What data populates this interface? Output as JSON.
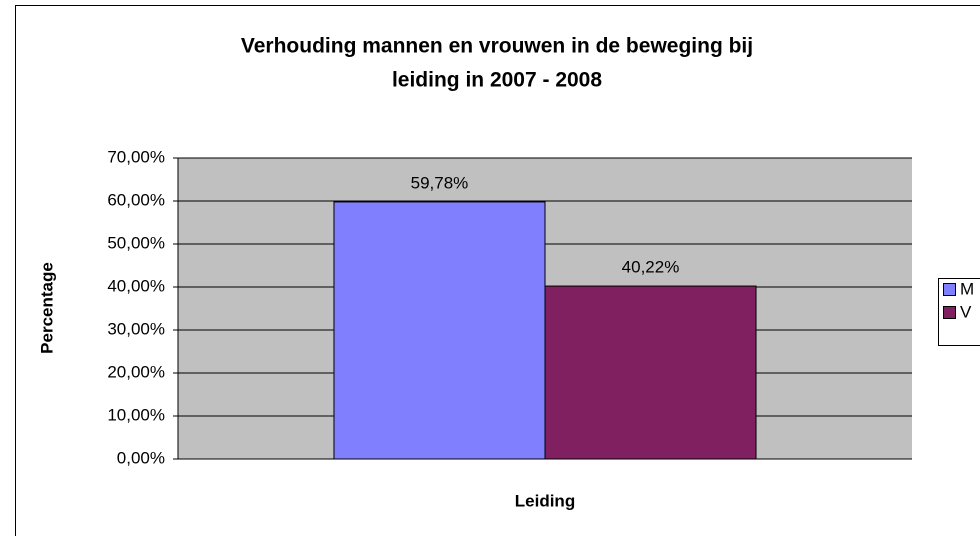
{
  "chart_data": {
    "type": "bar",
    "title": [
      "Verhouding mannen en vrouwen in de beweging bij",
      "leiding in 2007 - 2008"
    ],
    "x_label": "Leiding",
    "y_label": "Percentage",
    "categories": [
      null
    ],
    "series": [
      {
        "name": "M",
        "color": "#8080ff",
        "values": [
          59.78
        ],
        "value_labels": [
          "59,78%"
        ]
      },
      {
        "name": "V",
        "color": "#802060",
        "values": [
          40.22
        ],
        "value_labels": [
          "40,22%"
        ]
      }
    ],
    "ylim": [
      0,
      70
    ],
    "yticks": [
      {
        "value": 0,
        "label": "0,00%"
      },
      {
        "value": 10,
        "label": "10,00%"
      },
      {
        "value": 20,
        "label": "20,00%"
      },
      {
        "value": 30,
        "label": "30,00%"
      },
      {
        "value": 40,
        "label": "40,00%"
      },
      {
        "value": 50,
        "label": "50,00%"
      },
      {
        "value": 60,
        "label": "60,00%"
      },
      {
        "value": 70,
        "label": "70,00%"
      }
    ],
    "grid": true,
    "legend": "right"
  }
}
